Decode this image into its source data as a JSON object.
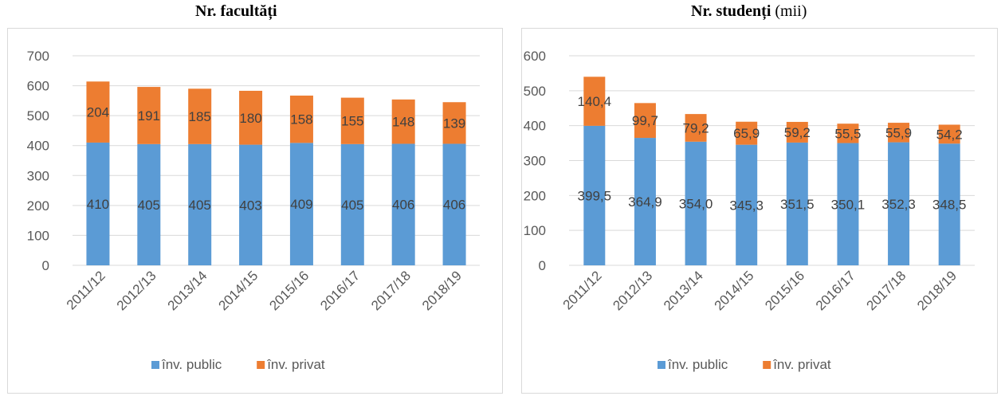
{
  "chart_data": [
    {
      "type": "bar",
      "stacked": true,
      "title": "Nr. facultăți",
      "unit": "",
      "categories": [
        "2011/12",
        "2012/13",
        "2013/14",
        "2014/15",
        "2015/16",
        "2016/17",
        "2017/18",
        "2018/19"
      ],
      "series": [
        {
          "name": "înv. public",
          "color": "#5b9bd5",
          "values": [
            410,
            405,
            405,
            403,
            409,
            405,
            406,
            406
          ],
          "labels": [
            "410",
            "405",
            "405",
            "403",
            "409",
            "405",
            "406",
            "406"
          ]
        },
        {
          "name": "înv. privat",
          "color": "#ed7d31",
          "values": [
            204,
            191,
            185,
            180,
            158,
            155,
            148,
            139
          ],
          "labels": [
            "204",
            "191",
            "185",
            "180",
            "158",
            "155",
            "148",
            "139"
          ]
        }
      ],
      "ylim": [
        0,
        700
      ],
      "yticks": [
        0,
        100,
        200,
        300,
        400,
        500,
        600,
        700
      ],
      "grid": true,
      "legend": "bottom"
    },
    {
      "type": "bar",
      "stacked": true,
      "title": "Nr. studenți",
      "unit": "(mii)",
      "categories": [
        "2011/12",
        "2012/13",
        "2013/14",
        "2014/15",
        "2015/16",
        "2016/17",
        "2017/18",
        "2018/19"
      ],
      "series": [
        {
          "name": "înv. public",
          "color": "#5b9bd5",
          "values": [
            399.5,
            364.9,
            354.0,
            345.3,
            351.5,
            350.1,
            352.3,
            348.5
          ],
          "labels": [
            "399,5",
            "364,9",
            "354,0",
            "345,3",
            "351,5",
            "350,1",
            "352,3",
            "348,5"
          ]
        },
        {
          "name": "înv. privat",
          "color": "#ed7d31",
          "values": [
            140.4,
            99.7,
            79.2,
            65.9,
            59.2,
            55.5,
            55.9,
            54.2
          ],
          "labels": [
            "140,4",
            "99,7",
            "79,2",
            "65,9",
            "59,2",
            "55,5",
            "55,9",
            "54,2"
          ]
        }
      ],
      "ylim": [
        0,
        600
      ],
      "yticks": [
        0,
        100,
        200,
        300,
        400,
        500,
        600
      ],
      "grid": true,
      "legend": "bottom"
    }
  ]
}
